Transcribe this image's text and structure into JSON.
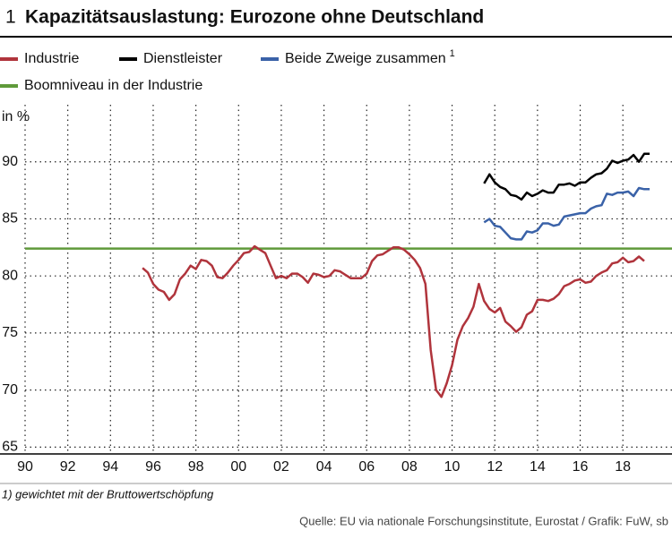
{
  "chart_data": {
    "type": "line",
    "number": "1",
    "title": "Kapazitätsauslastung: Eurozone ohne Deutschland",
    "y_label": "in %",
    "footnote": "1) gewichtet mit der Bruttowertschöpfung",
    "source": "Quelle: EU via nationale Forschungsinstitute, Eurostat / Grafik: FuW, sb",
    "xlim": [
      1990,
      2020.3
    ],
    "ylim": [
      64.4,
      95
    ],
    "xticks": [
      {
        "value": 1990,
        "label": "90"
      },
      {
        "value": 1992,
        "label": "92"
      },
      {
        "value": 1994,
        "label": "94"
      },
      {
        "value": 1996,
        "label": "96"
      },
      {
        "value": 1998,
        "label": "98"
      },
      {
        "value": 2000,
        "label": "00"
      },
      {
        "value": 2002,
        "label": "02"
      },
      {
        "value": 2004,
        "label": "04"
      },
      {
        "value": 2006,
        "label": "06"
      },
      {
        "value": 2008,
        "label": "08"
      },
      {
        "value": 2010,
        "label": "10"
      },
      {
        "value": 2012,
        "label": "12"
      },
      {
        "value": 2014,
        "label": "14"
      },
      {
        "value": 2016,
        "label": "16"
      },
      {
        "value": 2018,
        "label": "18"
      }
    ],
    "yticks": [
      65,
      70,
      75,
      80,
      85,
      90
    ],
    "grid": true,
    "series": [
      {
        "name": "Industrie",
        "color": "#b0343c",
        "x": [
          1995.5,
          1995.75,
          1996,
          1996.25,
          1996.5,
          1996.75,
          1997,
          1997.25,
          1997.5,
          1997.75,
          1998,
          1998.25,
          1998.5,
          1998.75,
          1999,
          1999.25,
          1999.5,
          1999.75,
          2000,
          2000.25,
          2000.5,
          2000.75,
          2001,
          2001.25,
          2001.5,
          2001.75,
          2002,
          2002.25,
          2002.5,
          2002.75,
          2003,
          2003.25,
          2003.5,
          2003.75,
          2004,
          2004.25,
          2004.5,
          2004.75,
          2005,
          2005.25,
          2005.5,
          2005.75,
          2006,
          2006.25,
          2006.5,
          2006.75,
          2007,
          2007.25,
          2007.5,
          2007.75,
          2008,
          2008.25,
          2008.5,
          2008.75,
          2009,
          2009.25,
          2009.5,
          2009.75,
          2010,
          2010.25,
          2010.5,
          2010.75,
          2011,
          2011.25,
          2011.5,
          2011.75,
          2012,
          2012.25,
          2012.5,
          2012.75,
          2013,
          2013.25,
          2013.5,
          2013.75,
          2014,
          2014.25,
          2014.5,
          2014.75,
          2015,
          2015.25,
          2015.5,
          2015.75,
          2016,
          2016.25,
          2016.5,
          2016.75,
          2017,
          2017.25,
          2017.5,
          2017.75,
          2018,
          2018.25,
          2018.5,
          2018.75,
          2019
        ],
        "values": [
          80.7,
          80.3,
          79.3,
          78.8,
          78.6,
          77.9,
          78.4,
          79.7,
          80.2,
          80.9,
          80.6,
          81.4,
          81.3,
          80.9,
          79.9,
          79.8,
          80.3,
          80.9,
          81.4,
          82.0,
          82.1,
          82.6,
          82.3,
          82.0,
          80.9,
          79.8,
          80.0,
          79.8,
          80.2,
          80.2,
          79.9,
          79.4,
          80.2,
          80.1,
          79.9,
          80.0,
          80.5,
          80.4,
          80.1,
          79.8,
          79.8,
          79.8,
          80.2,
          81.3,
          81.8,
          81.9,
          82.2,
          82.5,
          82.5,
          82.3,
          81.9,
          81.4,
          80.7,
          79.3,
          73.5,
          70.0,
          69.4,
          70.6,
          72.2,
          74.4,
          75.6,
          76.3,
          77.3,
          79.3,
          77.8,
          77.1,
          76.8,
          77.2,
          76.0,
          75.6,
          75.1,
          75.5,
          76.6,
          76.9,
          77.9,
          77.9,
          77.8,
          78.0,
          78.4,
          79.1,
          79.3,
          79.6,
          79.7,
          79.4,
          79.5,
          80.0,
          80.3,
          80.5,
          81.1,
          81.2,
          81.6,
          81.2,
          81.3,
          81.7,
          81.3
        ]
      },
      {
        "name": "Dienstleister",
        "color": "#000000",
        "x": [
          2011.5,
          2011.75,
          2012,
          2012.25,
          2012.5,
          2012.75,
          2013,
          2013.25,
          2013.5,
          2013.75,
          2014,
          2014.25,
          2014.5,
          2014.75,
          2015,
          2015.25,
          2015.5,
          2015.75,
          2016,
          2016.25,
          2016.5,
          2016.75,
          2017,
          2017.25,
          2017.5,
          2017.75,
          2018,
          2018.25,
          2018.5,
          2018.75,
          2019,
          2019.25
        ],
        "values": [
          88.1,
          88.9,
          88.2,
          87.8,
          87.6,
          87.1,
          87.0,
          86.7,
          87.3,
          87.0,
          87.2,
          87.5,
          87.3,
          87.3,
          88.0,
          88.0,
          88.1,
          87.9,
          88.2,
          88.2,
          88.6,
          88.9,
          89.0,
          89.4,
          90.1,
          89.9,
          90.1,
          90.2,
          90.6,
          90.0,
          90.7,
          90.7
        ]
      },
      {
        "name": "Beide Zweige zusammen",
        "footnote_mark": "1",
        "color": "#3a62a8",
        "x": [
          2011.5,
          2011.75,
          2012,
          2012.25,
          2012.5,
          2012.75,
          2013,
          2013.25,
          2013.5,
          2013.75,
          2014,
          2014.25,
          2014.5,
          2014.75,
          2015,
          2015.25,
          2015.5,
          2015.75,
          2016,
          2016.25,
          2016.5,
          2016.75,
          2017,
          2017.25,
          2017.5,
          2017.75,
          2018,
          2018.25,
          2018.5,
          2018.75,
          2019,
          2019.25
        ],
        "values": [
          84.7,
          85.0,
          84.4,
          84.3,
          83.8,
          83.3,
          83.2,
          83.2,
          83.9,
          83.8,
          84.0,
          84.6,
          84.6,
          84.4,
          84.5,
          85.2,
          85.3,
          85.4,
          85.5,
          85.5,
          85.9,
          86.1,
          86.2,
          87.2,
          87.1,
          87.3,
          87.3,
          87.4,
          87.0,
          87.7,
          87.6,
          87.6
        ]
      }
    ],
    "reference_line": {
      "name": "Boomniveau in der Industrie",
      "color": "#5f9a3a",
      "value": 82.4
    }
  }
}
